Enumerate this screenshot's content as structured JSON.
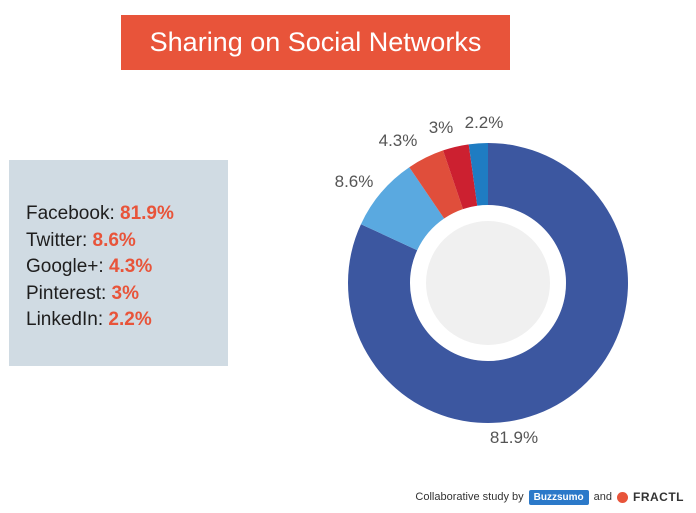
{
  "title": "Sharing on Social Networks",
  "legend": [
    {
      "name": "Facebook:",
      "value": "81.9%"
    },
    {
      "name": "Twitter:",
      "value": "8.6%"
    },
    {
      "name": "Google+:",
      "value": "4.3%"
    },
    {
      "name": "Pinterest:",
      "value": "3%"
    },
    {
      "name": "LinkedIn:",
      "value": "2.2%"
    }
  ],
  "chart_data": {
    "type": "pie",
    "title": "Sharing on Social Networks",
    "slices": [
      {
        "name": "Facebook",
        "value": 81.9,
        "label": "81.9%",
        "color": "#3c57a0"
      },
      {
        "name": "Twitter",
        "value": 8.6,
        "label": "8.6%",
        "color": "#5aa9e0"
      },
      {
        "name": "Google+",
        "value": 4.3,
        "label": "4.3%",
        "color": "#e04e3b"
      },
      {
        "name": "Pinterest",
        "value": 3,
        "label": "3%",
        "color": "#cc2030"
      },
      {
        "name": "LinkedIn",
        "value": 2.2,
        "label": "2.2%",
        "color": "#1f7cc2"
      }
    ],
    "style": "donut"
  },
  "colors": {
    "accent": "#e8543a",
    "legend_bg": "#d0dbe3",
    "donut_center": "#f0f0f0"
  },
  "footer": {
    "prefix": "Collaborative study by",
    "brand1": "Buzzsumo",
    "joiner": "and",
    "brand2": "FRACTL"
  }
}
